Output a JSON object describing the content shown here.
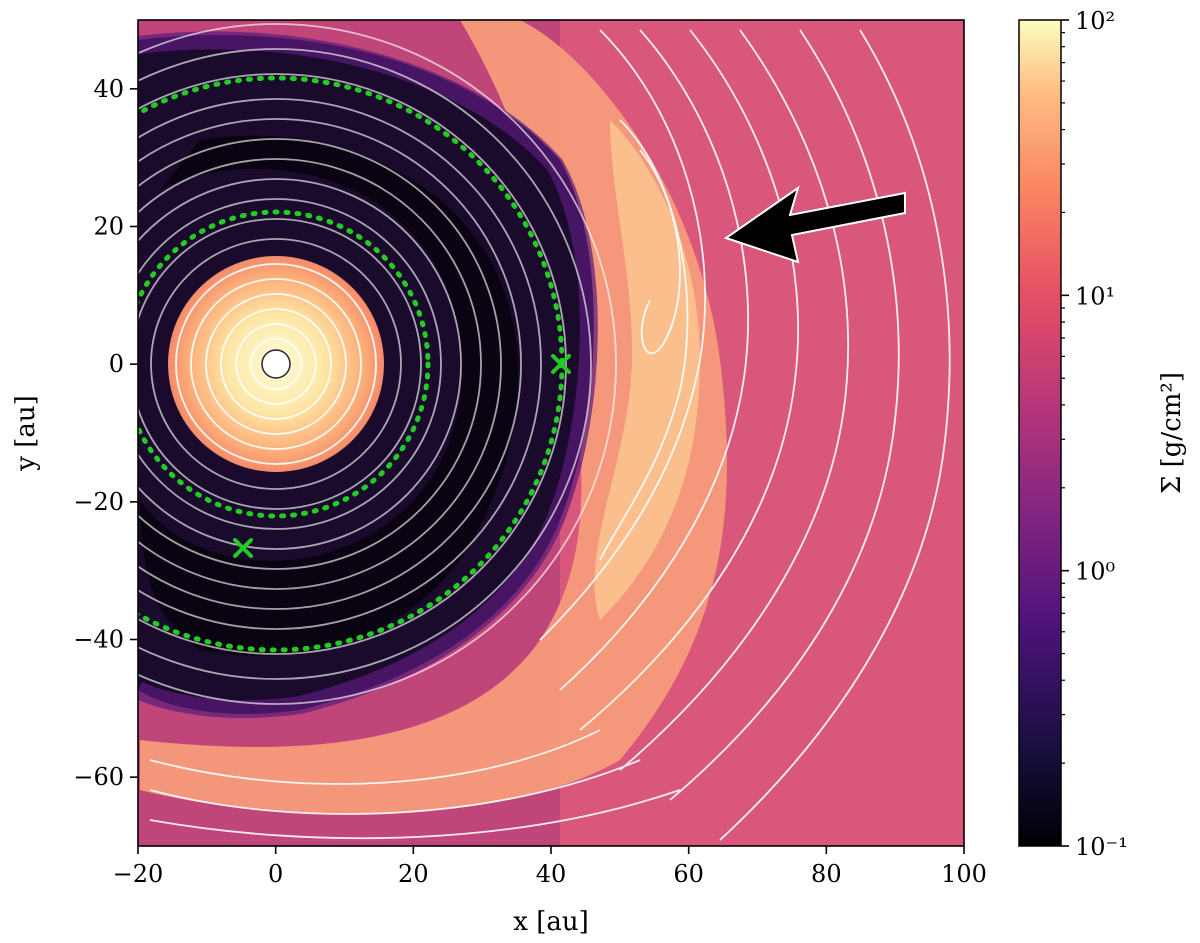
{
  "chart_data": {
    "type": "heatmap",
    "title": "",
    "xlabel": "x [au]",
    "ylabel": "y [au]",
    "xlim": [
      -20,
      100
    ],
    "ylim": [
      -70,
      50
    ],
    "x_ticks": [
      -20,
      0,
      20,
      40,
      60,
      80,
      100
    ],
    "y_ticks": [
      -60,
      -40,
      -20,
      0,
      20,
      40
    ],
    "x_tick_labels": [
      "−20",
      "0",
      "20",
      "40",
      "60",
      "80",
      "100"
    ],
    "y_tick_labels": [
      "−60",
      "−40",
      "−20",
      "0",
      "20",
      "40"
    ],
    "colorbar": {
      "label": "Σ [g/cm²]",
      "scale": "log",
      "range": [
        0.1,
        100
      ],
      "tick_values": [
        0.1,
        1,
        10,
        100
      ],
      "tick_labels": [
        "10⁻¹",
        "10⁰",
        "10¹",
        "10²"
      ],
      "colormap": "magma"
    },
    "overlays": {
      "streamlines": "white",
      "dotted_orbits": [
        {
          "color": "#22cc22",
          "center": [
            0,
            0
          ],
          "radius": 22
        },
        {
          "color": "#22cc22",
          "center": [
            0,
            0
          ],
          "radius": 41
        }
      ],
      "markers": [
        {
          "symbol": "x",
          "color": "#22cc22",
          "x": 41.5,
          "y": 0
        },
        {
          "symbol": "x",
          "color": "#22cc22",
          "x": -5,
          "y": -27
        }
      ],
      "central_star": {
        "x": 0,
        "y": 0
      },
      "arrow": {
        "color": "#000000",
        "from": [
          91,
          24
        ],
        "to": [
          66,
          19
        ]
      }
    }
  }
}
